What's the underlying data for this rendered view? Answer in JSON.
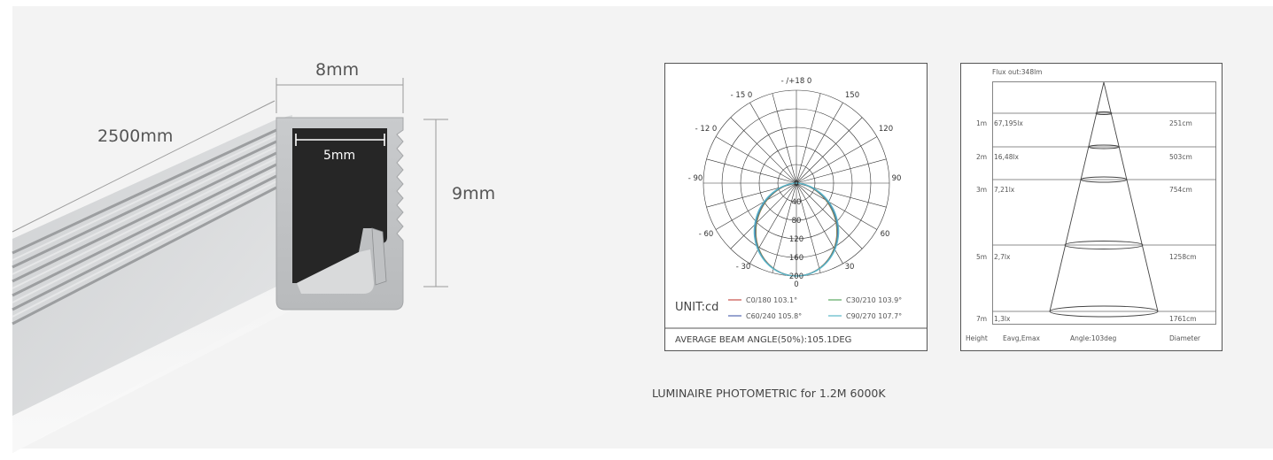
{
  "profile": {
    "length_label": "2500mm",
    "width_label": "8mm",
    "inner_width_label": "5mm",
    "height_label": "9mm"
  },
  "polar": {
    "angle_labels": [
      "- /+18 0",
      "- 15 0",
      "150",
      "- 12 0",
      "120",
      "- 90",
      "90",
      "- 60",
      "60",
      "- 30",
      "30",
      "0"
    ],
    "radial_labels": [
      "0",
      "40",
      "80",
      "120",
      "160",
      "200"
    ],
    "unit": "UNIT:cd",
    "legend": [
      {
        "label": "C0/180  103.1°",
        "color": "#c8504a"
      },
      {
        "label": "C30/210  103.9°",
        "color": "#5aa860"
      },
      {
        "label": "C60/240  105.8°",
        "color": "#5468b0"
      },
      {
        "label": "C90/270  107.7°",
        "color": "#5ab8c8"
      }
    ],
    "average_beam": "AVERAGE BEAM ANGLE(50%):105.1DEG"
  },
  "illuminance": {
    "flux": "Flux out:348lm",
    "rows": [
      {
        "height": "1m",
        "lux": "67,195lx",
        "diameter": "251cm"
      },
      {
        "height": "2m",
        "lux": "16,48lx",
        "diameter": "503cm"
      },
      {
        "height": "3m",
        "lux": "7,21lx",
        "diameter": "754cm"
      },
      {
        "height": "5m",
        "lux": "2,7lx",
        "diameter": "1258cm"
      },
      {
        "height": "7m",
        "lux": "1,3lx",
        "diameter": "1761cm"
      }
    ],
    "footer": {
      "height": "Height",
      "eavg": "Eavg,Emax",
      "angle": "Angle:103deg",
      "diameter": "Diameter"
    }
  },
  "caption": "LUMINAIRE PHOTOMETRIC for 1.2M 6000K"
}
